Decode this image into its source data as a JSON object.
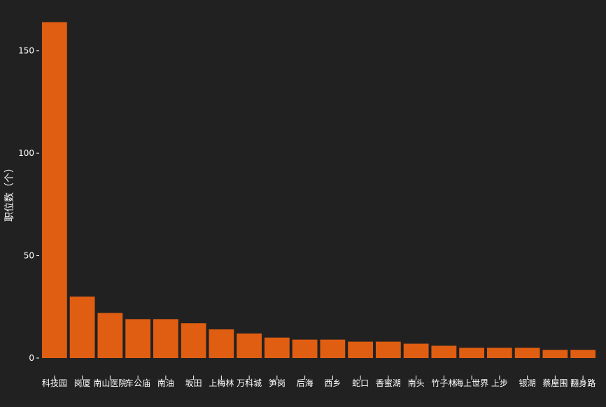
{
  "chart_data": {
    "type": "bar",
    "title": "",
    "xlabel": "",
    "ylabel": "职位数（个）",
    "categories": [
      "科技园",
      "岗厦",
      "南山医院",
      "车公庙",
      "南油",
      "坂田",
      "上梅林",
      "万科城",
      "笋岗",
      "后海",
      "西乡",
      "蛇口",
      "香蜜湖",
      "南头",
      "竹子林",
      "海上世界",
      "上步",
      "银湖",
      "蔡屋围",
      "翻身路"
    ],
    "values": [
      164,
      30,
      22,
      19,
      19,
      17,
      14,
      12,
      10,
      9,
      9,
      8,
      8,
      7,
      6,
      5,
      5,
      5,
      4,
      4
    ],
    "yticks": [
      0,
      50,
      100,
      150
    ],
    "ylim": [
      0,
      168
    ],
    "grid": false,
    "colors": {
      "bar": "#E05E12",
      "background": "#212121",
      "text": "#FFFFFF"
    }
  }
}
